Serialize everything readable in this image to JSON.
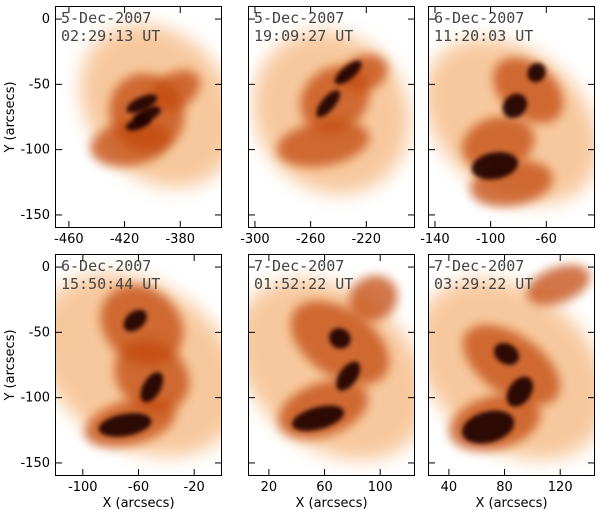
{
  "figure": {
    "y_axis_label": "Y (arcsecs)",
    "x_axis_label": "X (arcsecs)",
    "colors": {
      "dark": "#1a0500",
      "mid": "#c24a0e",
      "light": "#f5b67d",
      "frame": "#000000"
    }
  },
  "panels": [
    {
      "date": "5-Dec-2007",
      "time": "02:29:13 UT",
      "x_ticks": [
        "-460",
        "-420",
        "-380"
      ],
      "x_range": [
        -470,
        -350
      ],
      "y_ticks": [
        "0",
        "-50",
        "-100",
        "-150"
      ],
      "y_range": [
        -160,
        10
      ],
      "show_y_labels": true,
      "show_x_title": false
    },
    {
      "date": "5-Dec-2007",
      "time": "19:09:27 UT",
      "x_ticks": [
        "-300",
        "-260",
        "-220"
      ],
      "x_range": [
        -305,
        -185
      ],
      "y_ticks": [
        "0",
        "-50",
        "-100",
        "-150"
      ],
      "y_range": [
        -160,
        10
      ],
      "show_y_labels": false,
      "show_x_title": false
    },
    {
      "date": "6-Dec-2007",
      "time": "11:20:03 UT",
      "x_ticks": [
        "-140",
        "-100",
        "-60"
      ],
      "x_range": [
        -145,
        -25
      ],
      "y_ticks": [
        "0",
        "-50",
        "-100",
        "-150"
      ],
      "y_range": [
        -160,
        10
      ],
      "show_y_labels": false,
      "show_x_title": false
    },
    {
      "date": "6-Dec-2007",
      "time": "15:50:44 UT",
      "x_ticks": [
        "-100",
        "-60",
        "-20"
      ],
      "x_range": [
        -120,
        0
      ],
      "y_ticks": [
        "0",
        "-50",
        "-100",
        "-150"
      ],
      "y_range": [
        -160,
        10
      ],
      "show_y_labels": true,
      "show_x_title": true
    },
    {
      "date": "7-Dec-2007",
      "time": "01:52:22 UT",
      "x_ticks": [
        "20",
        "60",
        "100"
      ],
      "x_range": [
        5,
        125
      ],
      "y_ticks": [
        "0",
        "-50",
        "-100",
        "-150"
      ],
      "y_range": [
        -160,
        10
      ],
      "show_y_labels": false,
      "show_x_title": true
    },
    {
      "date": "7-Dec-2007",
      "time": "03:29:22 UT",
      "x_ticks": [
        "40",
        "80",
        "120"
      ],
      "x_range": [
        25,
        145
      ],
      "y_ticks": [
        "0",
        "-50",
        "-100",
        "-150"
      ],
      "y_range": [
        -160,
        10
      ],
      "show_y_labels": false,
      "show_x_title": true
    }
  ]
}
